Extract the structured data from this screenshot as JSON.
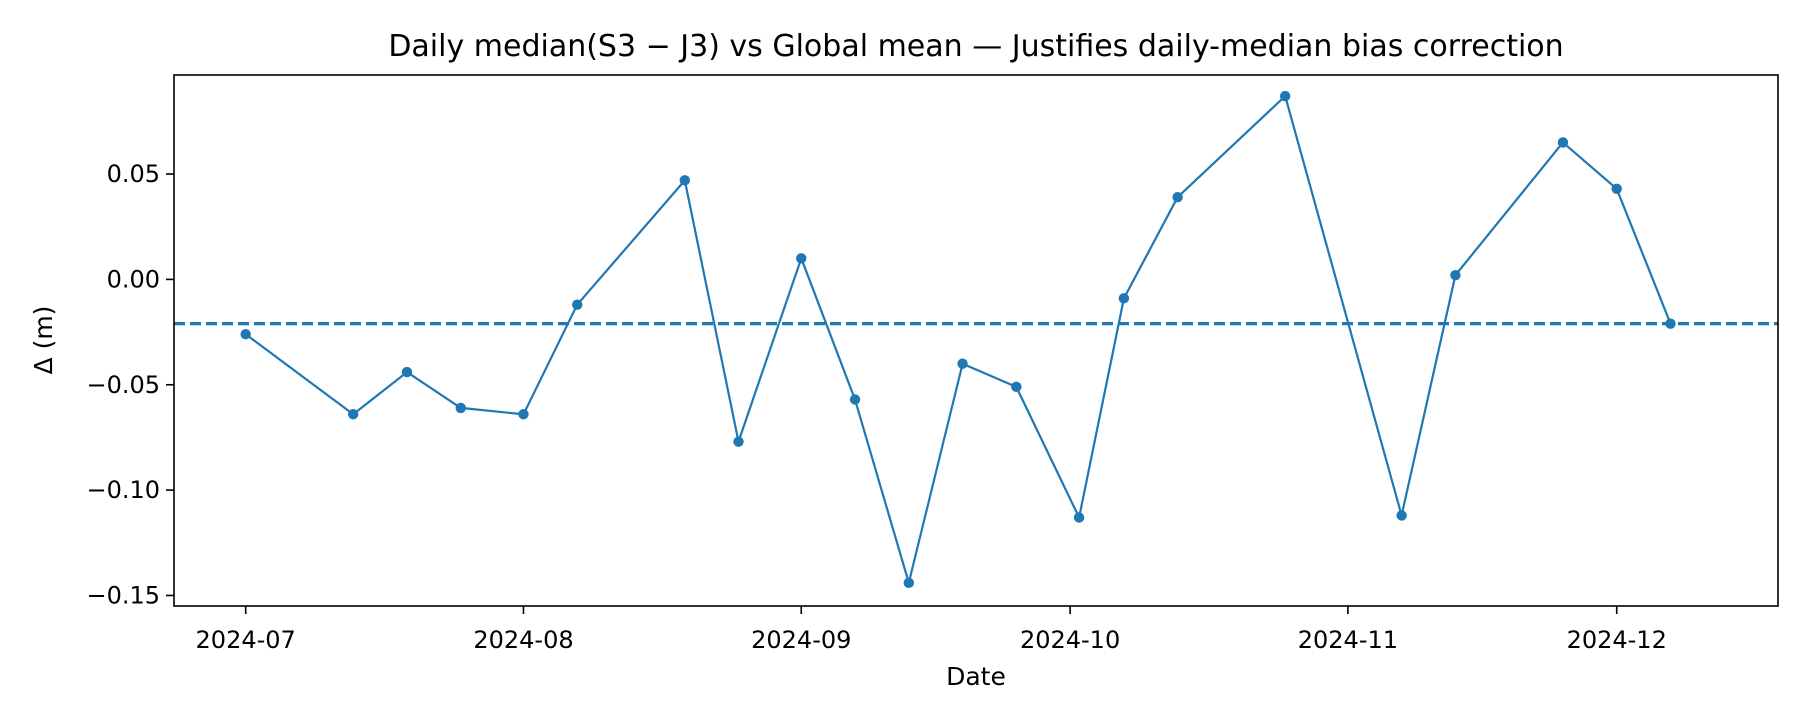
{
  "chart_data": {
    "type": "line",
    "title": "Daily median(S3 − J3) vs Global mean — Justifies daily-median bias correction",
    "xlabel": "Date",
    "ylabel": "Δ (m)",
    "xlim": [
      "2024-06-23",
      "2024-12-19"
    ],
    "ylim": [
      -0.155,
      0.097
    ],
    "x_ticks": [
      "2024-07-01",
      "2024-08-01",
      "2024-09-01",
      "2024-10-01",
      "2024-11-01",
      "2024-12-01"
    ],
    "x_tick_labels": [
      "2024-07",
      "2024-08",
      "2024-09",
      "2024-10",
      "2024-11",
      "2024-12"
    ],
    "y_ticks": [
      0.05,
      0.0,
      -0.05,
      -0.1,
      -0.15
    ],
    "y_tick_labels": [
      "0.05",
      "0.00",
      "−0.05",
      "−0.10",
      "−0.15"
    ],
    "grid": false,
    "series": [
      {
        "x": [
          "2024-07-01",
          "2024-07-13",
          "2024-07-19",
          "2024-07-25",
          "2024-08-01",
          "2024-08-07",
          "2024-08-19",
          "2024-08-25",
          "2024-09-01",
          "2024-09-07",
          "2024-09-13",
          "2024-09-19",
          "2024-09-25",
          "2024-10-02",
          "2024-10-07",
          "2024-10-13",
          "2024-10-25",
          "2024-11-07",
          "2024-11-13",
          "2024-11-25",
          "2024-12-01",
          "2024-12-07"
        ],
        "values": [
          -0.026,
          -0.064,
          -0.044,
          -0.061,
          -0.064,
          -0.012,
          0.047,
          -0.077,
          0.01,
          -0.057,
          -0.144,
          -0.04,
          -0.051,
          -0.113,
          -0.009,
          0.039,
          0.087,
          -0.112,
          0.002,
          0.065,
          0.043,
          -0.021
        ],
        "color": "#1f77b4",
        "marker": "circle"
      }
    ],
    "reference_line": {
      "y": -0.021,
      "style": "dashed",
      "color": "#1f77b4"
    }
  }
}
